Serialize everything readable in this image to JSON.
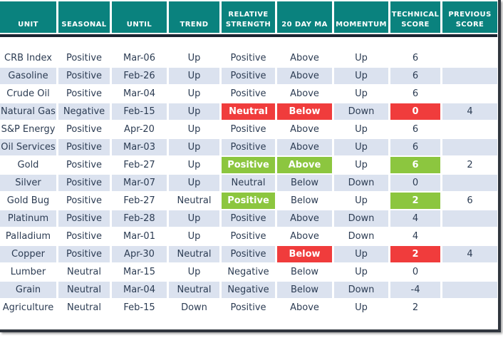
{
  "chart_data": {
    "type": "table",
    "columns": [
      "UNIT",
      "SEASONAL",
      "UNTIL",
      "TREND",
      "RELATIVE STRENGTH",
      "20 DAY MA",
      "MOMENTUM",
      "TECHNICAL SCORE",
      "PREVIOUS SCORE"
    ],
    "rows": [
      [
        {
          "t": "CRB Index"
        },
        {
          "t": "Positive"
        },
        {
          "t": "Mar-06"
        },
        {
          "t": "Up"
        },
        {
          "t": "Positive"
        },
        {
          "t": "Above"
        },
        {
          "t": "Up"
        },
        {
          "t": "6"
        },
        {
          "t": ""
        }
      ],
      [
        {
          "t": "Gasoline"
        },
        {
          "t": "Positive"
        },
        {
          "t": "Feb-26"
        },
        {
          "t": "Up"
        },
        {
          "t": "Positive"
        },
        {
          "t": "Above"
        },
        {
          "t": "Up"
        },
        {
          "t": "6"
        },
        {
          "t": ""
        }
      ],
      [
        {
          "t": "Crude Oil"
        },
        {
          "t": "Positive"
        },
        {
          "t": "Mar-04"
        },
        {
          "t": "Up"
        },
        {
          "t": "Positive"
        },
        {
          "t": "Above"
        },
        {
          "t": "Up"
        },
        {
          "t": "6"
        },
        {
          "t": ""
        }
      ],
      [
        {
          "t": "Natural Gas"
        },
        {
          "t": "Negative"
        },
        {
          "t": "Feb-15"
        },
        {
          "t": "Up"
        },
        {
          "t": "Neutral",
          "hl": "red"
        },
        {
          "t": "Below",
          "hl": "red"
        },
        {
          "t": "Down"
        },
        {
          "t": "0",
          "hl": "red"
        },
        {
          "t": "4"
        }
      ],
      [
        {
          "t": "S&P Energy"
        },
        {
          "t": "Positive"
        },
        {
          "t": "Apr-20"
        },
        {
          "t": "Up"
        },
        {
          "t": "Positive"
        },
        {
          "t": "Above"
        },
        {
          "t": "Up"
        },
        {
          "t": "6"
        },
        {
          "t": ""
        }
      ],
      [
        {
          "t": "Oil Services"
        },
        {
          "t": "Positive"
        },
        {
          "t": "Mar-03"
        },
        {
          "t": "Up"
        },
        {
          "t": "Positive"
        },
        {
          "t": "Above"
        },
        {
          "t": "Up"
        },
        {
          "t": "6"
        },
        {
          "t": ""
        }
      ],
      [
        {
          "t": "Gold"
        },
        {
          "t": "Positive"
        },
        {
          "t": "Feb-27"
        },
        {
          "t": "Up"
        },
        {
          "t": "Positive",
          "hl": "green"
        },
        {
          "t": "Above",
          "hl": "green"
        },
        {
          "t": "Up"
        },
        {
          "t": "6",
          "hl": "green"
        },
        {
          "t": "2"
        }
      ],
      [
        {
          "t": "Silver"
        },
        {
          "t": "Positive"
        },
        {
          "t": "Mar-07"
        },
        {
          "t": "Up"
        },
        {
          "t": "Neutral"
        },
        {
          "t": "Below"
        },
        {
          "t": "Down"
        },
        {
          "t": "0"
        },
        {
          "t": ""
        }
      ],
      [
        {
          "t": "Gold Bug"
        },
        {
          "t": "Positive"
        },
        {
          "t": "Feb-27"
        },
        {
          "t": "Neutral"
        },
        {
          "t": "Positive",
          "hl": "green"
        },
        {
          "t": "Below"
        },
        {
          "t": "Up"
        },
        {
          "t": "2",
          "hl": "green"
        },
        {
          "t": "6"
        }
      ],
      [
        {
          "t": "Platinum"
        },
        {
          "t": "Positive"
        },
        {
          "t": "Feb-28"
        },
        {
          "t": "Up"
        },
        {
          "t": "Positive"
        },
        {
          "t": "Above"
        },
        {
          "t": "Down"
        },
        {
          "t": "4"
        },
        {
          "t": ""
        }
      ],
      [
        {
          "t": "Palladium"
        },
        {
          "t": "Positive"
        },
        {
          "t": "Mar-01"
        },
        {
          "t": "Up"
        },
        {
          "t": "Positive"
        },
        {
          "t": "Above"
        },
        {
          "t": "Down"
        },
        {
          "t": "4"
        },
        {
          "t": ""
        }
      ],
      [
        {
          "t": "Copper"
        },
        {
          "t": "Positive"
        },
        {
          "t": "Apr-30"
        },
        {
          "t": "Neutral"
        },
        {
          "t": "Positive"
        },
        {
          "t": "Below",
          "hl": "red"
        },
        {
          "t": "Up"
        },
        {
          "t": "2",
          "hl": "red"
        },
        {
          "t": "4"
        }
      ],
      [
        {
          "t": "Lumber"
        },
        {
          "t": "Neutral"
        },
        {
          "t": "Mar-15"
        },
        {
          "t": "Up"
        },
        {
          "t": "Negative"
        },
        {
          "t": "Below"
        },
        {
          "t": "Up"
        },
        {
          "t": "0"
        },
        {
          "t": ""
        }
      ],
      [
        {
          "t": "Grain"
        },
        {
          "t": "Neutral"
        },
        {
          "t": "Mar-04"
        },
        {
          "t": "Neutral"
        },
        {
          "t": "Negative"
        },
        {
          "t": "Below"
        },
        {
          "t": "Down"
        },
        {
          "t": "-4"
        },
        {
          "t": ""
        }
      ],
      [
        {
          "t": "Agriculture"
        },
        {
          "t": "Neutral"
        },
        {
          "t": "Feb-15"
        },
        {
          "t": "Down"
        },
        {
          "t": "Positive"
        },
        {
          "t": "Above"
        },
        {
          "t": "Up"
        },
        {
          "t": "2"
        },
        {
          "t": ""
        }
      ]
    ]
  },
  "colors": {
    "header_bg": "#0a827e",
    "stripe": "#dbe2ef",
    "red": "#f03c3c",
    "green": "#8cc63f",
    "text": "#2c3c53",
    "divider": "#1a2330",
    "frame_border": "#30363e"
  }
}
